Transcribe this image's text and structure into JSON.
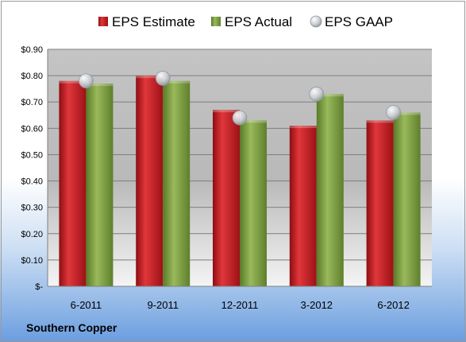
{
  "chart_data": {
    "type": "bar",
    "title": "",
    "xlabel": "",
    "ylabel": "",
    "categories": [
      "6-2011",
      "9-2011",
      "12-2011",
      "3-2012",
      "6-2012"
    ],
    "series": [
      {
        "name": "EPS Estimate",
        "kind": "bar",
        "color": "#c0161c",
        "values": [
          0.78,
          0.8,
          0.67,
          0.61,
          0.63
        ]
      },
      {
        "name": "EPS Actual",
        "kind": "bar",
        "color": "#7a9a3a",
        "values": [
          0.77,
          0.78,
          0.63,
          0.73,
          0.66
        ]
      },
      {
        "name": "EPS GAAP",
        "kind": "marker",
        "color": "#b8bec4",
        "values": [
          0.78,
          0.79,
          0.64,
          0.73,
          0.66
        ]
      }
    ],
    "ylim": [
      0,
      0.9
    ],
    "yticks": [
      0,
      0.1,
      0.2,
      0.3,
      0.4,
      0.5,
      0.6,
      0.7,
      0.8,
      0.9
    ],
    "ytick_labels": [
      "$-",
      "$0.10",
      "$0.20",
      "$0.30",
      "$0.40",
      "$0.50",
      "$0.60",
      "$0.70",
      "$0.80",
      "$0.90"
    ],
    "grid": true,
    "legend_position": "top"
  },
  "footer": {
    "company": "Southern Copper"
  }
}
